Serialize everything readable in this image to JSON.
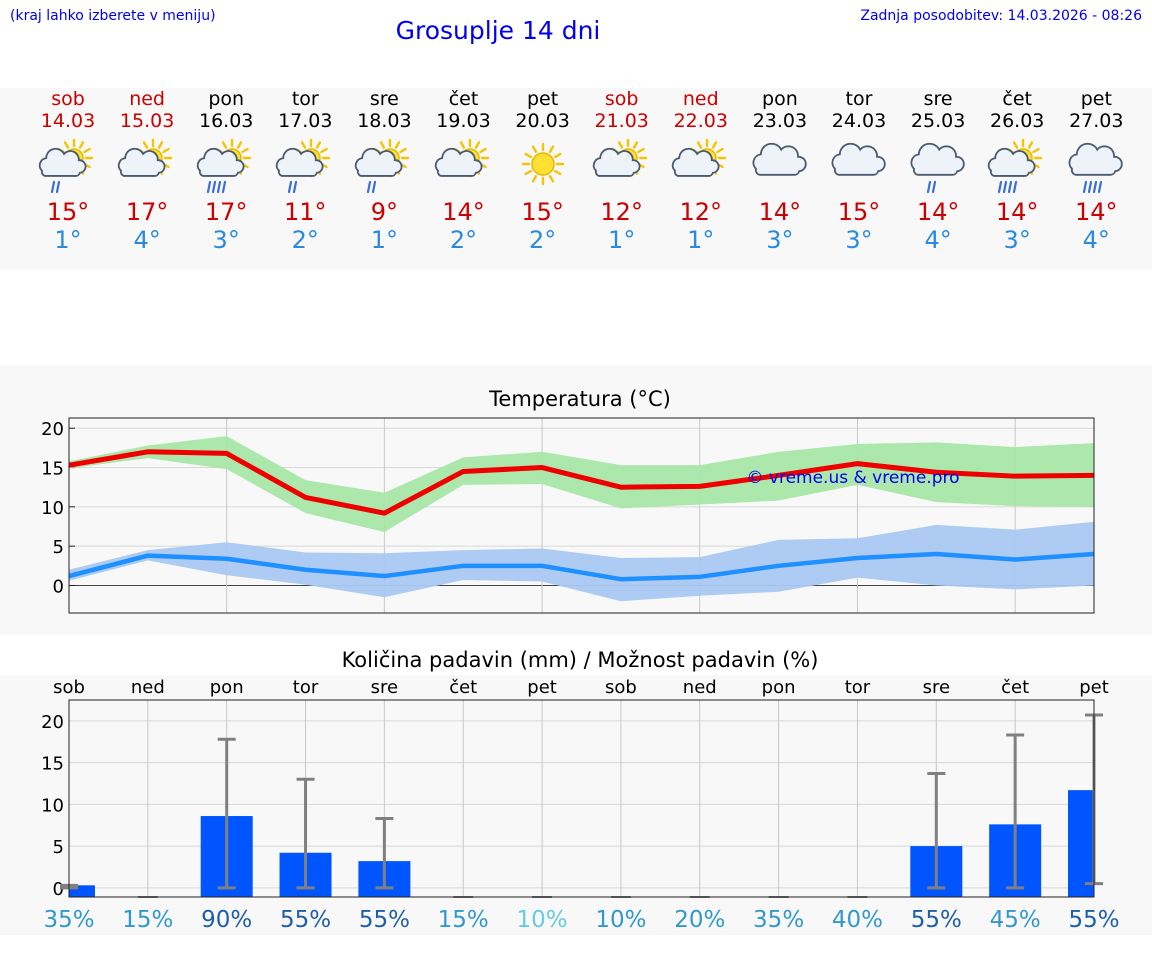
{
  "header": {
    "left_note": "(kraj lahko izberete v meniju)",
    "title": "Grosuplje 14 dni",
    "updated": "Zadnja posodobitev: 14.03.2026 - 08:26"
  },
  "days": [
    {
      "name": "sob",
      "date": "14.03",
      "weekend": true,
      "icon": "sun-cloud-rain-icon",
      "max": "15°",
      "min": "1°"
    },
    {
      "name": "ned",
      "date": "15.03",
      "weekend": true,
      "icon": "sun-cloud-icon",
      "max": "17°",
      "min": "4°"
    },
    {
      "name": "pon",
      "date": "16.03",
      "weekend": false,
      "icon": "sun-cloud-heavy-rain-icon",
      "max": "17°",
      "min": "3°"
    },
    {
      "name": "tor",
      "date": "17.03",
      "weekend": false,
      "icon": "sun-cloud-rain-icon",
      "max": "11°",
      "min": "2°"
    },
    {
      "name": "sre",
      "date": "18.03",
      "weekend": false,
      "icon": "sun-cloud-rain-icon",
      "max": "9°",
      "min": "1°"
    },
    {
      "name": "čet",
      "date": "19.03",
      "weekend": false,
      "icon": "sun-cloud-icon",
      "max": "14°",
      "min": "2°"
    },
    {
      "name": "pet",
      "date": "20.03",
      "weekend": false,
      "icon": "sun-icon",
      "max": "15°",
      "min": "2°"
    },
    {
      "name": "sob",
      "date": "21.03",
      "weekend": true,
      "icon": "sun-cloud-icon",
      "max": "12°",
      "min": "1°"
    },
    {
      "name": "ned",
      "date": "22.03",
      "weekend": true,
      "icon": "sun-cloud-icon",
      "max": "12°",
      "min": "1°"
    },
    {
      "name": "pon",
      "date": "23.03",
      "weekend": false,
      "icon": "cloud-icon",
      "max": "14°",
      "min": "3°"
    },
    {
      "name": "tor",
      "date": "24.03",
      "weekend": false,
      "icon": "cloud-icon",
      "max": "15°",
      "min": "3°"
    },
    {
      "name": "sre",
      "date": "25.03",
      "weekend": false,
      "icon": "cloud-rain-icon",
      "max": "14°",
      "min": "4°"
    },
    {
      "name": "čet",
      "date": "26.03",
      "weekend": false,
      "icon": "sun-cloud-heavy-rain-icon",
      "max": "14°",
      "min": "3°"
    },
    {
      "name": "pet",
      "date": "27.03",
      "weekend": false,
      "icon": "cloud-heavy-rain-icon",
      "max": "14°",
      "min": "4°"
    }
  ],
  "colors": {
    "weekend": "#cc0000",
    "max_line": "#ee0000",
    "max_band": "#a8e6a8",
    "min_line": "#1e90ff",
    "min_band": "#aac8f2",
    "bar": "#0055ff",
    "error": "#808080"
  },
  "chart_data": [
    {
      "type": "line",
      "title": "Temperatura (°C)",
      "watermark": "© vreme.us & vreme.pro",
      "x": [
        "sob",
        "ned",
        "pon",
        "tor",
        "sre",
        "čet",
        "pet",
        "sob",
        "ned",
        "pon",
        "tor",
        "sre",
        "čet",
        "pet"
      ],
      "yticks": [
        0,
        5,
        10,
        15,
        20
      ],
      "ylim": [
        -3.5,
        21.3
      ],
      "series": [
        {
          "name": "max",
          "values": [
            15.3,
            17.0,
            16.8,
            11.2,
            9.2,
            14.5,
            15.0,
            12.5,
            12.6,
            14.0,
            15.5,
            14.4,
            13.9,
            14.0
          ],
          "band_low": [
            14.9,
            16.2,
            14.8,
            9.2,
            6.8,
            12.8,
            12.9,
            9.8,
            10.3,
            10.8,
            12.8,
            10.6,
            10.1,
            10.0
          ],
          "band_high": [
            15.8,
            17.8,
            19.0,
            13.4,
            11.8,
            16.3,
            17.0,
            15.3,
            15.3,
            17.0,
            18.0,
            18.2,
            17.6,
            18.1
          ]
        },
        {
          "name": "min",
          "values": [
            1.2,
            3.8,
            3.4,
            2.0,
            1.2,
            2.5,
            2.5,
            0.8,
            1.1,
            2.5,
            3.5,
            4.0,
            3.3,
            4.0
          ],
          "band_low": [
            0.6,
            3.2,
            1.3,
            0.1,
            -1.5,
            0.7,
            0.5,
            -2.0,
            -1.3,
            -0.8,
            1.0,
            0.0,
            -0.5,
            0.0
          ],
          "band_high": [
            2.0,
            4.5,
            5.5,
            4.2,
            4.1,
            4.5,
            4.7,
            3.5,
            3.6,
            5.8,
            6.0,
            7.7,
            7.1,
            8.1
          ]
        }
      ]
    },
    {
      "type": "bar",
      "title": "Količina padavin (mm) / Možnost padavin (%)",
      "categories": [
        "sob",
        "ned",
        "pon",
        "tor",
        "sre",
        "čet",
        "pet",
        "sob",
        "ned",
        "pon",
        "tor",
        "sre",
        "čet",
        "pet"
      ],
      "values": [
        0.3,
        0,
        8.6,
        4.2,
        3.2,
        0,
        0,
        0,
        0,
        0,
        0,
        5.0,
        7.6,
        11.7
      ],
      "error_low": [
        0,
        0,
        0,
        0,
        0,
        0,
        0,
        0,
        0,
        0,
        0,
        0,
        0,
        0.5
      ],
      "error_high": [
        0.3,
        0,
        17.8,
        13.0,
        8.3,
        0,
        0,
        0,
        0,
        0,
        0,
        13.7,
        18.3,
        20.7
      ],
      "probabilities": [
        "35%",
        "15%",
        "90%",
        "55%",
        "55%",
        "15%",
        "10%",
        "10%",
        "20%",
        "35%",
        "40%",
        "55%",
        "45%",
        "55%"
      ],
      "probability_colors": [
        "#3399cc",
        "#3399cc",
        "#1f5fa8",
        "#1f5fa8",
        "#1f5fa8",
        "#3399cc",
        "#66ccdd",
        "#3399cc",
        "#3399cc",
        "#3399cc",
        "#3399cc",
        "#1f5fa8",
        "#3399cc",
        "#1f5fa8"
      ],
      "yticks": [
        0,
        5,
        10,
        15,
        20
      ],
      "ylim": [
        -1.1,
        22.5
      ]
    }
  ]
}
